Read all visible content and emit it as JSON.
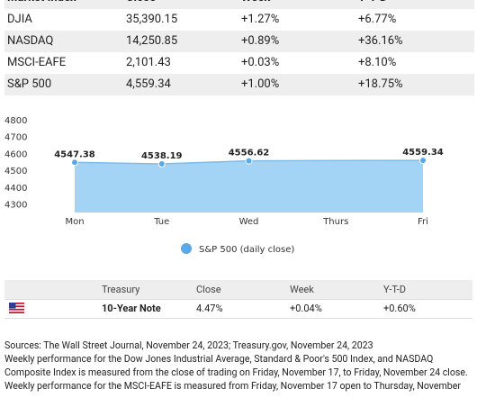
{
  "table": {
    "header": [
      "Market Index",
      "Close",
      "Week",
      "Y-T-D"
    ],
    "rows": [
      [
        "DJIA",
        "35,390.15",
        "+1.27%",
        "+6.77%"
      ],
      [
        "NASDAQ",
        "14,250.85",
        "+0.89%",
        "+36.16%"
      ],
      [
        "MSCI-EAFE",
        "2,101.43",
        "+0.03%",
        "+8.10%"
      ],
      [
        "S&P 500",
        "4,559.34",
        "+1.00%",
        "+18.75%"
      ]
    ]
  },
  "chart_data": {
    "type": "area",
    "categories": [
      "Mon",
      "Tue",
      "Wed",
      "Thurs",
      "Fri"
    ],
    "series": [
      {
        "name": "S&P 500 (daily close)",
        "color": "#a3d3f5",
        "values": [
          4547.38,
          4538.19,
          4556.62,
          null,
          4559.34
        ]
      }
    ],
    "ylim": [
      4250,
      4800
    ],
    "yticks": [
      4300,
      4400,
      4500,
      4600,
      4700,
      4800
    ],
    "span_gaps": true,
    "grid": false,
    "legend": "bottom"
  },
  "treasury": {
    "header": [
      "Treasury",
      "Close",
      "Week",
      "Y-T-D"
    ],
    "rows": [
      [
        "10-Year Note",
        "4.47%",
        "+0.04%",
        "+0.60%"
      ]
    ]
  },
  "sources": [
    "Sources: The Wall Street Journal, November 24, 2023; Treasury.gov, November 24, 2023",
    "Weekly performance for the Dow Jones Industrial Average, Standard & Poor's 500 Index, and NASDAQ Composite Index is measured from the close of trading on Friday, November 17, to Friday, November 24 close.",
    "Weekly performance for the MSCI-EAFE is measured from Friday, November 17 open to Thursday, November"
  ]
}
